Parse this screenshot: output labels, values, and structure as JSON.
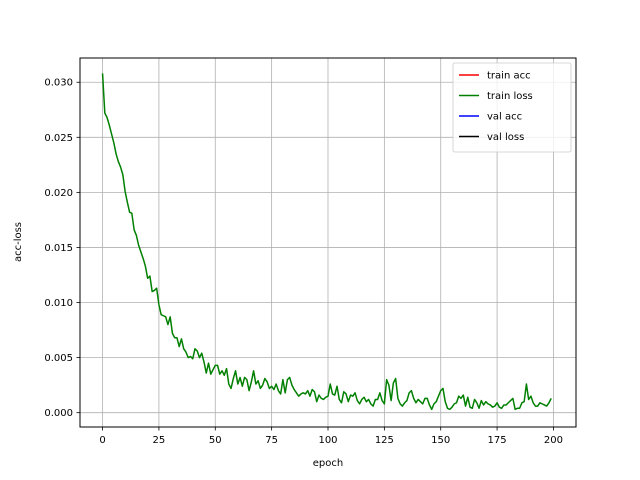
{
  "chart_data": {
    "type": "line",
    "title": "",
    "xlabel": "epoch",
    "ylabel": "acc-loss",
    "xlim": [
      -10,
      210
    ],
    "ylim": [
      -0.0013,
      0.0322
    ],
    "x_ticks": [
      0,
      25,
      50,
      75,
      100,
      125,
      150,
      175,
      200
    ],
    "y_ticks": [
      0.0,
      0.005,
      0.01,
      0.015,
      0.02,
      0.025,
      0.03
    ],
    "y_tick_labels": [
      "0.000",
      "0.005",
      "0.010",
      "0.015",
      "0.020",
      "0.025",
      "0.030"
    ],
    "grid": true,
    "legend_position": "top-right",
    "series": [
      {
        "name": "train acc",
        "color": "#ff0000",
        "values": []
      },
      {
        "name": "train loss",
        "color": "#008000",
        "values": [
          0.0308,
          0.0272,
          0.0268,
          0.0261,
          0.0253,
          0.0245,
          0.0235,
          0.0228,
          0.0223,
          0.0216,
          0.0201,
          0.0191,
          0.0182,
          0.0181,
          0.0166,
          0.0161,
          0.0152,
          0.0146,
          0.014,
          0.0133,
          0.0122,
          0.0124,
          0.011,
          0.0111,
          0.0113,
          0.0098,
          0.0089,
          0.0088,
          0.0087,
          0.008,
          0.0087,
          0.0072,
          0.0068,
          0.0068,
          0.006,
          0.0067,
          0.0058,
          0.0055,
          0.005,
          0.0051,
          0.0049,
          0.0058,
          0.0056,
          0.005,
          0.0054,
          0.0046,
          0.0036,
          0.0045,
          0.0035,
          0.0039,
          0.0043,
          0.0043,
          0.0035,
          0.0038,
          0.0034,
          0.004,
          0.0026,
          0.0022,
          0.0031,
          0.0038,
          0.0026,
          0.0032,
          0.0024,
          0.0032,
          0.003,
          0.002,
          0.0028,
          0.0038,
          0.0026,
          0.0029,
          0.0022,
          0.0025,
          0.0031,
          0.0028,
          0.0022,
          0.0024,
          0.0021,
          0.0026,
          0.002,
          0.0017,
          0.003,
          0.0018,
          0.003,
          0.0032,
          0.0025,
          0.0021,
          0.0018,
          0.0015,
          0.0017,
          0.0018,
          0.0017,
          0.002,
          0.0015,
          0.0021,
          0.0019,
          0.001,
          0.0016,
          0.0013,
          0.0012,
          0.0014,
          0.0015,
          0.0026,
          0.0017,
          0.0016,
          0.0024,
          0.0012,
          0.0009,
          0.0019,
          0.0017,
          0.001,
          0.0016,
          0.0015,
          0.0018,
          0.0011,
          0.0008,
          0.0012,
          0.0014,
          0.001,
          0.0012,
          0.0008,
          0.0006,
          0.0012,
          0.0012,
          0.0018,
          0.0011,
          0.0008,
          0.003,
          0.0025,
          0.0011,
          0.0027,
          0.0031,
          0.0013,
          0.0008,
          0.0006,
          0.0009,
          0.0011,
          0.0018,
          0.002,
          0.0013,
          0.0009,
          0.0012,
          0.001,
          0.0008,
          0.0013,
          0.0013,
          0.0007,
          0.0003,
          0.0008,
          0.001,
          0.0015,
          0.002,
          0.0022,
          0.001,
          0.0004,
          0.0003,
          0.0005,
          0.0008,
          0.0009,
          0.0015,
          0.0013,
          0.0016,
          0.0006,
          0.0014,
          0.0005,
          0.0004,
          0.0012,
          0.0009,
          0.0004,
          0.0011,
          0.0007,
          0.001,
          0.0008,
          0.0007,
          0.0005,
          0.0006,
          0.0009,
          0.0005,
          0.0004,
          0.0007,
          0.0007,
          0.0009,
          0.0011,
          0.0013,
          0.0003,
          0.0004,
          0.0004,
          0.0009,
          0.001,
          0.0026,
          0.0012,
          0.0015,
          0.0009,
          0.0006,
          0.0006,
          0.0009,
          0.0008,
          0.0007,
          0.0006,
          0.0009,
          0.0013
        ]
      },
      {
        "name": "val acc",
        "color": "#0000ff",
        "values": []
      },
      {
        "name": "val loss",
        "color": "#000000",
        "values": []
      }
    ]
  }
}
